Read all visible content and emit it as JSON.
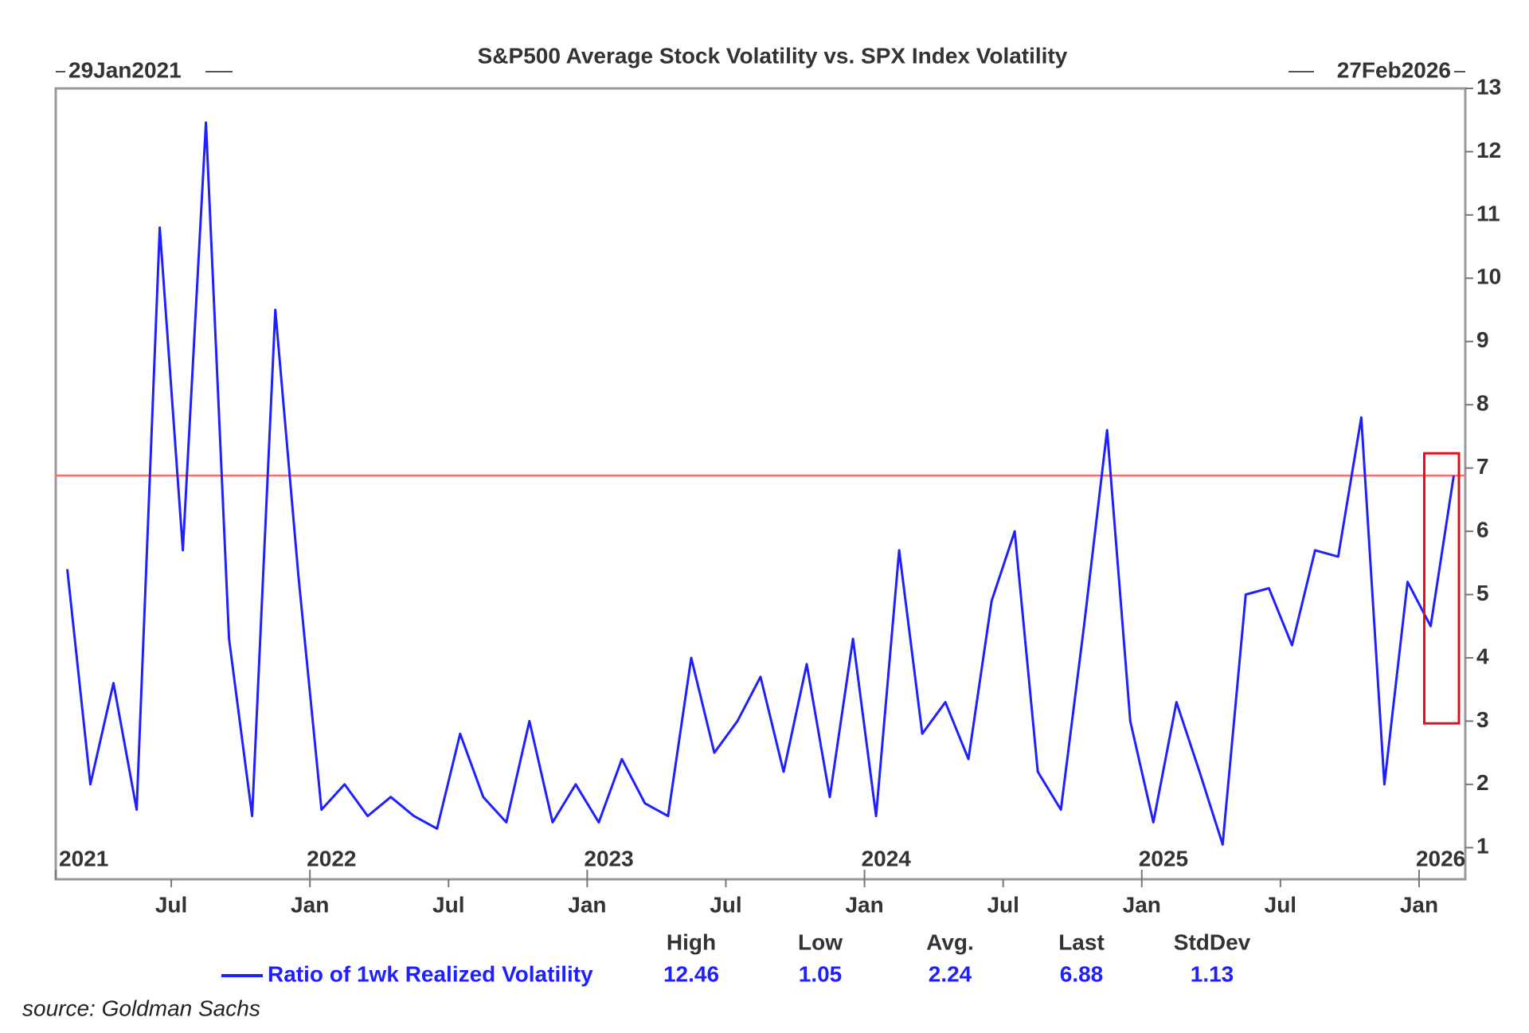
{
  "chart_data": {
    "type": "line",
    "title": "S&P500 Average Stock Volatility vs. SPX Index Volatility",
    "start_label": "29Jan2021",
    "end_label": "27Feb2026",
    "x": [
      "2021-02",
      "2021-03",
      "2021-04",
      "2021-05",
      "2021-06",
      "2021-07",
      "2021-08",
      "2021-09",
      "2021-10",
      "2021-11",
      "2021-12",
      "2022-01",
      "2022-02",
      "2022-03",
      "2022-04",
      "2022-05",
      "2022-06",
      "2022-07",
      "2022-08",
      "2022-09",
      "2022-10",
      "2022-11",
      "2022-12",
      "2023-01",
      "2023-02",
      "2023-03",
      "2023-04",
      "2023-05",
      "2023-06",
      "2023-07",
      "2023-08",
      "2023-09",
      "2023-10",
      "2023-11",
      "2023-12",
      "2024-01",
      "2024-02",
      "2024-03",
      "2024-04",
      "2024-05",
      "2024-06",
      "2024-07",
      "2024-08",
      "2024-09",
      "2024-10",
      "2024-11",
      "2024-12",
      "2025-01",
      "2025-02",
      "2025-03",
      "2025-04",
      "2025-05",
      "2025-06",
      "2025-07",
      "2025-08",
      "2025-09",
      "2025-10",
      "2025-11",
      "2025-12",
      "2026-01",
      "2026-02"
    ],
    "series": [
      {
        "name": "Ratio of 1wk Realized Volatility",
        "color": "#1f1fff",
        "values": [
          5.4,
          2.0,
          3.6,
          1.6,
          10.8,
          5.7,
          12.46,
          4.3,
          1.5,
          9.5,
          5.3,
          1.6,
          2.0,
          1.5,
          1.8,
          1.5,
          1.3,
          2.8,
          1.8,
          1.4,
          3.0,
          1.4,
          2.0,
          1.4,
          2.4,
          1.7,
          1.5,
          4.0,
          2.5,
          3.0,
          3.7,
          2.2,
          3.9,
          1.8,
          4.3,
          1.5,
          5.7,
          2.8,
          3.3,
          2.4,
          4.9,
          6.0,
          2.2,
          1.6,
          4.5,
          7.6,
          3.0,
          1.4,
          3.3,
          2.2,
          1.05,
          5.0,
          5.1,
          4.2,
          5.7,
          5.6,
          7.8,
          2.0,
          5.2,
          4.5,
          6.88
        ]
      }
    ],
    "xlim": [
      "2021-02",
      "2026-03"
    ],
    "xticks": [
      {
        "value": "2021-07",
        "label": "Jul"
      },
      {
        "value": "2022-01",
        "label": "Jan"
      },
      {
        "value": "2022-07",
        "label": "Jul"
      },
      {
        "value": "2023-01",
        "label": "Jan"
      },
      {
        "value": "2023-07",
        "label": "Jul"
      },
      {
        "value": "2024-01",
        "label": "Jan"
      },
      {
        "value": "2024-07",
        "label": "Jul"
      },
      {
        "value": "2025-01",
        "label": "Jan"
      },
      {
        "value": "2025-07",
        "label": "Jul"
      },
      {
        "value": "2026-01",
        "label": "Jan"
      }
    ],
    "year_ticks": [
      {
        "value": "2021-02",
        "label": "2021"
      },
      {
        "value": "2022-01",
        "label": "2022"
      },
      {
        "value": "2023-01",
        "label": "2023"
      },
      {
        "value": "2024-01",
        "label": "2024"
      },
      {
        "value": "2025-01",
        "label": "2025"
      },
      {
        "value": "2026-01",
        "label": "2026"
      }
    ],
    "ylim": [
      0.5,
      13
    ],
    "yticks": [
      1,
      2,
      3,
      4,
      5,
      6,
      7,
      8,
      9,
      10,
      11,
      12,
      13
    ],
    "hline": 6.88,
    "hline_color": "#ff6b6b",
    "highlight_color": "#e0101a",
    "stats": {
      "headers": [
        "High",
        "Low",
        "Avg.",
        "Last",
        "StdDev"
      ],
      "values": [
        12.46,
        1.05,
        2.24,
        6.88,
        1.13
      ]
    },
    "source": "source: Goldman Sachs"
  }
}
